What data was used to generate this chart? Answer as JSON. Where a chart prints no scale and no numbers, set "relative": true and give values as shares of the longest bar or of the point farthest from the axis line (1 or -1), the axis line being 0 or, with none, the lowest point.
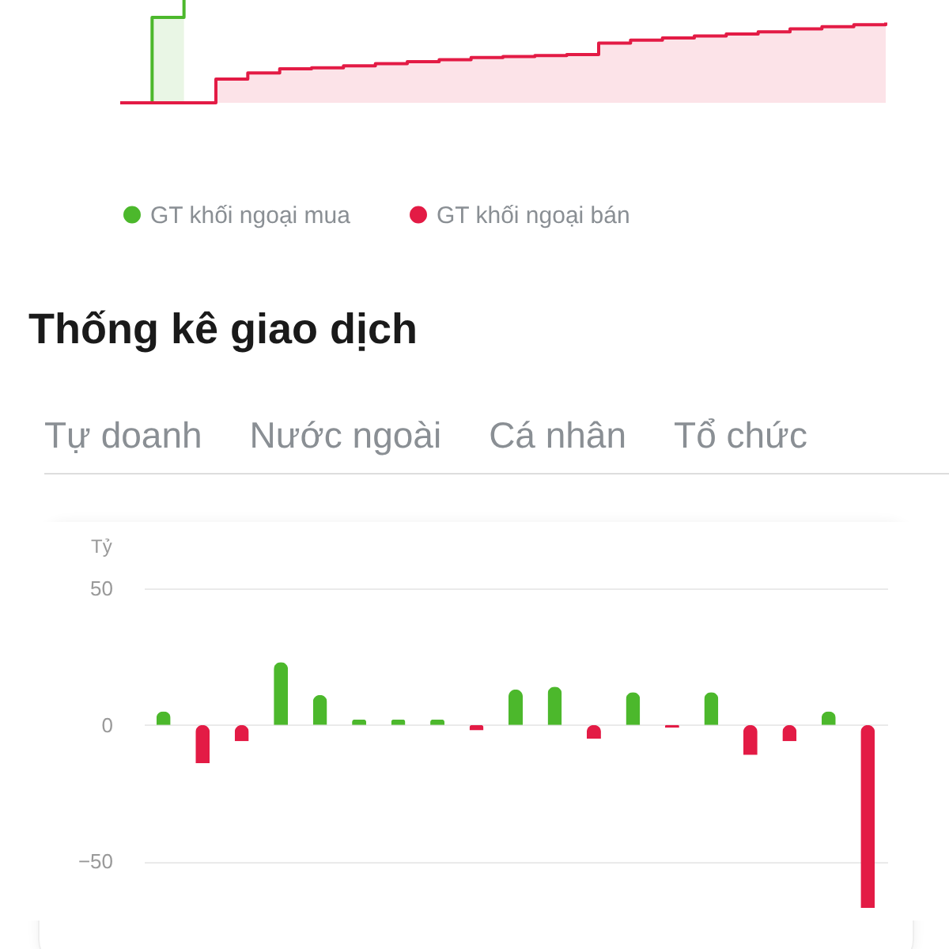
{
  "chart_data": [
    {
      "type": "area",
      "relative": true,
      "legend": "bottom",
      "categories": [
        null,
        null,
        null,
        null,
        null,
        null,
        null,
        null,
        null,
        null,
        null,
        null,
        null,
        null,
        null,
        null,
        null,
        null,
        null,
        null,
        null,
        null,
        null,
        null,
        null
      ],
      "series": [
        {
          "name": "GT khối ngoại mua",
          "color": "#4cb82c",
          "values": [
            0,
            0.83,
            1,
            null,
            null,
            null,
            null,
            null,
            null,
            null,
            null,
            null,
            null,
            null,
            null,
            null,
            null,
            null,
            null,
            null,
            null,
            null,
            null,
            null,
            null
          ]
        },
        {
          "name": "GT khối ngoại bán",
          "color": "#e31b45",
          "values": [
            0,
            0,
            0,
            0.23,
            0.29,
            0.33,
            0.34,
            0.36,
            0.38,
            0.4,
            0.42,
            0.44,
            0.45,
            0.46,
            0.47,
            0.58,
            0.61,
            0.63,
            0.65,
            0.67,
            0.69,
            0.72,
            0.74,
            0.76,
            0.78
          ]
        }
      ]
    },
    {
      "type": "bar",
      "title": "Thống kê giao dịch",
      "annotations": [
        "Tự doanh",
        "Nước ngoài",
        "Cá nhân",
        "Tổ chức"
      ],
      "ylabel": "Tỷ",
      "grid": "y",
      "categories": [
        null,
        null,
        null,
        null,
        null,
        null,
        null,
        null,
        null,
        null,
        null,
        null,
        null,
        null,
        null,
        null,
        null,
        null,
        null
      ],
      "values": [
        5,
        -14,
        -6,
        23,
        11,
        2,
        2,
        2,
        -2,
        13,
        14,
        -5,
        12,
        -1,
        12,
        -11,
        -6,
        5,
        -67
      ],
      "colors": [
        "#4cb82c",
        "#e31b45",
        "#e31b45",
        "#4cb82c",
        "#4cb82c",
        "#4cb82c",
        "#4cb82c",
        "#4cb82c",
        "#e31b45",
        "#4cb82c",
        "#4cb82c",
        "#e31b45",
        "#4cb82c",
        "#e31b45",
        "#4cb82c",
        "#e31b45",
        "#e31b45",
        "#4cb82c",
        "#e31b45"
      ],
      "ylim": [
        -67,
        50
      ],
      "yticks": [
        -50,
        0,
        50
      ]
    }
  ]
}
